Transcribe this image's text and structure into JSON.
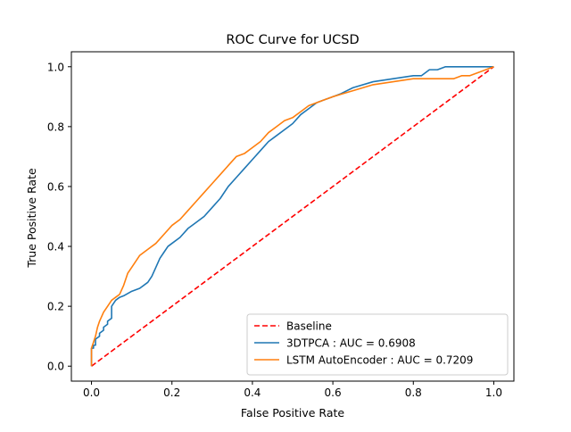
{
  "chart_data": {
    "type": "line",
    "title": "ROC Curve for UCSD",
    "xlabel": "False Positive Rate",
    "ylabel": "True Positive Rate",
    "xlim": [
      -0.05,
      1.05
    ],
    "ylim": [
      -0.05,
      1.05
    ],
    "x_ticks": [
      0.0,
      0.2,
      0.4,
      0.6,
      0.8,
      1.0
    ],
    "y_ticks": [
      0.0,
      0.2,
      0.4,
      0.6,
      0.8,
      1.0
    ],
    "x_tick_labels": [
      "0.0",
      "0.2",
      "0.4",
      "0.6",
      "0.8",
      "1.0"
    ],
    "y_tick_labels": [
      "0.0",
      "0.2",
      "0.4",
      "0.6",
      "0.8",
      "1.0"
    ],
    "grid": false,
    "legend_position": "lower-right",
    "series": [
      {
        "name": "Baseline",
        "color": "#ff0000",
        "style": "dashed",
        "x": [
          0.0,
          1.0
        ],
        "y": [
          0.0,
          1.0
        ]
      },
      {
        "name": "3DTPCA : AUC = 0.6908",
        "color": "#1f77b4",
        "style": "solid",
        "x": [
          0.0,
          0.0,
          0.005,
          0.005,
          0.01,
          0.01,
          0.02,
          0.02,
          0.03,
          0.03,
          0.04,
          0.04,
          0.05,
          0.05,
          0.06,
          0.07,
          0.08,
          0.1,
          0.12,
          0.14,
          0.15,
          0.16,
          0.17,
          0.18,
          0.19,
          0.2,
          0.22,
          0.24,
          0.26,
          0.28,
          0.3,
          0.32,
          0.34,
          0.36,
          0.38,
          0.4,
          0.42,
          0.44,
          0.46,
          0.48,
          0.5,
          0.52,
          0.54,
          0.56,
          0.58,
          0.6,
          0.62,
          0.65,
          0.7,
          0.75,
          0.8,
          0.82,
          0.84,
          0.86,
          0.88,
          0.9,
          0.95,
          1.0
        ],
        "y": [
          0.0,
          0.06,
          0.06,
          0.07,
          0.07,
          0.09,
          0.1,
          0.11,
          0.12,
          0.13,
          0.14,
          0.15,
          0.16,
          0.2,
          0.22,
          0.23,
          0.235,
          0.25,
          0.26,
          0.28,
          0.3,
          0.33,
          0.36,
          0.38,
          0.4,
          0.41,
          0.43,
          0.46,
          0.48,
          0.5,
          0.53,
          0.56,
          0.6,
          0.63,
          0.66,
          0.69,
          0.72,
          0.75,
          0.77,
          0.79,
          0.81,
          0.84,
          0.86,
          0.88,
          0.89,
          0.9,
          0.91,
          0.93,
          0.95,
          0.96,
          0.97,
          0.97,
          0.99,
          0.99,
          1.0,
          1.0,
          1.0,
          1.0
        ]
      },
      {
        "name": "LSTM AutoEncoder : AUC = 0.7209",
        "color": "#ff7f0e",
        "style": "solid",
        "x": [
          0.0,
          0.0,
          0.005,
          0.01,
          0.015,
          0.02,
          0.03,
          0.04,
          0.05,
          0.06,
          0.07,
          0.08,
          0.09,
          0.1,
          0.11,
          0.12,
          0.14,
          0.16,
          0.18,
          0.2,
          0.22,
          0.24,
          0.26,
          0.28,
          0.3,
          0.32,
          0.34,
          0.36,
          0.38,
          0.4,
          0.42,
          0.44,
          0.46,
          0.48,
          0.5,
          0.52,
          0.54,
          0.56,
          0.58,
          0.6,
          0.65,
          0.7,
          0.75,
          0.8,
          0.85,
          0.9,
          0.92,
          0.94,
          0.96,
          0.98,
          1.0
        ],
        "y": [
          0.0,
          0.06,
          0.08,
          0.1,
          0.13,
          0.15,
          0.18,
          0.2,
          0.22,
          0.23,
          0.24,
          0.27,
          0.31,
          0.33,
          0.35,
          0.37,
          0.39,
          0.41,
          0.44,
          0.47,
          0.49,
          0.52,
          0.55,
          0.58,
          0.61,
          0.64,
          0.67,
          0.7,
          0.71,
          0.73,
          0.75,
          0.78,
          0.8,
          0.82,
          0.83,
          0.85,
          0.87,
          0.88,
          0.89,
          0.9,
          0.92,
          0.94,
          0.95,
          0.96,
          0.96,
          0.96,
          0.97,
          0.97,
          0.98,
          0.99,
          1.0
        ]
      }
    ]
  }
}
